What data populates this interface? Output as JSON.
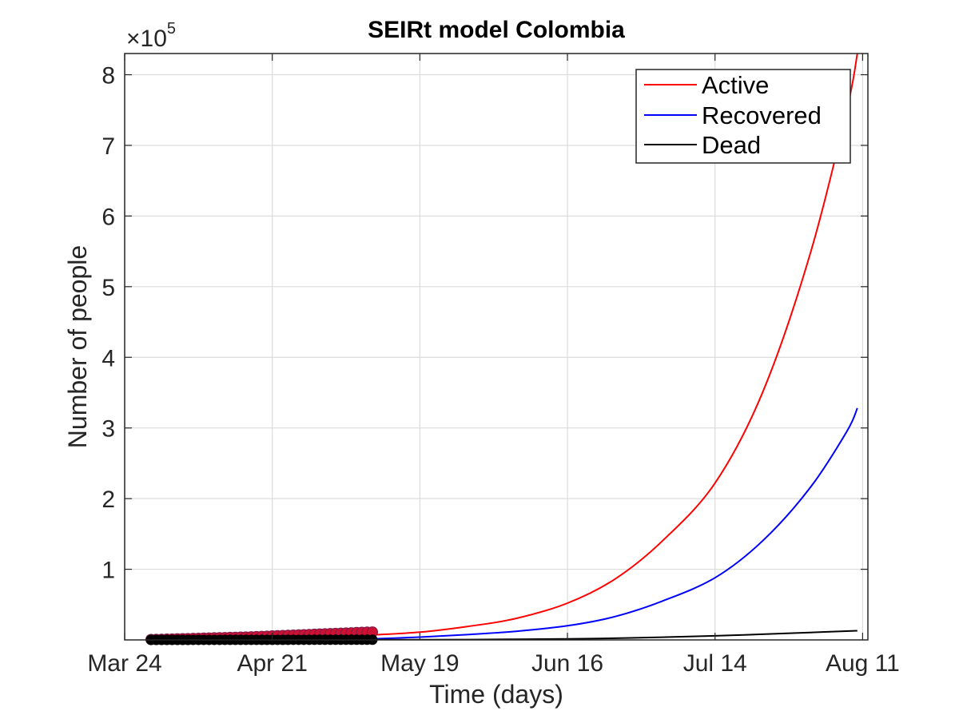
{
  "chart_data": {
    "type": "line",
    "title": "SEIRt model Colombia",
    "xlabel": "Time (days)",
    "ylabel": "Number of people",
    "y_exponent_label": "×10",
    "y_exponent_power": "5",
    "x_ticks": [
      "Mar 24",
      "Apr 21",
      "May 19",
      "Jun 16",
      "Jul 14",
      "Aug 11"
    ],
    "y_ticks": [
      "1",
      "2",
      "3",
      "4",
      "5",
      "6",
      "7",
      "8"
    ],
    "xlim": [
      "2020-03-24",
      "2020-08-12"
    ],
    "ylim": [
      0,
      830000
    ],
    "grid": true,
    "legend_position": "top-right",
    "series": [
      {
        "name": "Active",
        "color": "#ff0000",
        "x": [
          "2020-05-10",
          "2020-05-19",
          "2020-05-28",
          "2020-06-06",
          "2020-06-16",
          "2020-06-25",
          "2020-07-04",
          "2020-07-14",
          "2020-07-23",
          "2020-08-01",
          "2020-08-08",
          "2020-08-10"
        ],
        "y": [
          7000,
          11000,
          19000,
          30000,
          52000,
          86000,
          140000,
          222000,
          350000,
          545000,
          750000,
          830000
        ]
      },
      {
        "name": "Recovered",
        "color": "#0000ff",
        "x": [
          "2020-05-10",
          "2020-05-19",
          "2020-05-28",
          "2020-06-06",
          "2020-06-16",
          "2020-06-25",
          "2020-07-04",
          "2020-07-14",
          "2020-07-23",
          "2020-08-01",
          "2020-08-08",
          "2020-08-10"
        ],
        "y": [
          1500,
          4000,
          7500,
          12000,
          20000,
          33000,
          55000,
          88000,
          140000,
          215000,
          295000,
          328000
        ]
      },
      {
        "name": "Dead",
        "color": "#000000",
        "x": [
          "2020-05-10",
          "2020-05-19",
          "2020-05-28",
          "2020-06-06",
          "2020-06-16",
          "2020-06-25",
          "2020-07-04",
          "2020-07-14",
          "2020-07-23",
          "2020-08-01",
          "2020-08-10"
        ],
        "y": [
          200,
          300,
          500,
          900,
          1500,
          2400,
          3800,
          5800,
          8000,
          10500,
          13000
        ]
      }
    ],
    "observed_data": {
      "note_color_active": "#cc1133",
      "note_color_dead": "#000000",
      "x_start": "2020-03-29",
      "x_end": "2020-05-10",
      "active_y": [
        600,
        700,
        900,
        1100,
        1300,
        1500,
        1700,
        1900,
        2100,
        2300,
        2500,
        2700,
        2900,
        3100,
        3300,
        3500,
        3700,
        3900,
        4100,
        4400,
        4700,
        5000,
        5300,
        5600,
        5900,
        6200,
        6500,
        6800,
        7100,
        7400,
        7700,
        8000,
        8300,
        8600,
        8900,
        9200,
        9500,
        9800,
        10100,
        10400,
        10700,
        11000,
        11200
      ],
      "dead_y": [
        10,
        12,
        15,
        18,
        22,
        26,
        30,
        35,
        40,
        46,
        52,
        58,
        64,
        70,
        77,
        84,
        91,
        98,
        105,
        113,
        121,
        129,
        137,
        145,
        153,
        162,
        171,
        180,
        189,
        198,
        207,
        216,
        225,
        234,
        243,
        252,
        261,
        270,
        279,
        288,
        297,
        306,
        315
      ]
    }
  }
}
